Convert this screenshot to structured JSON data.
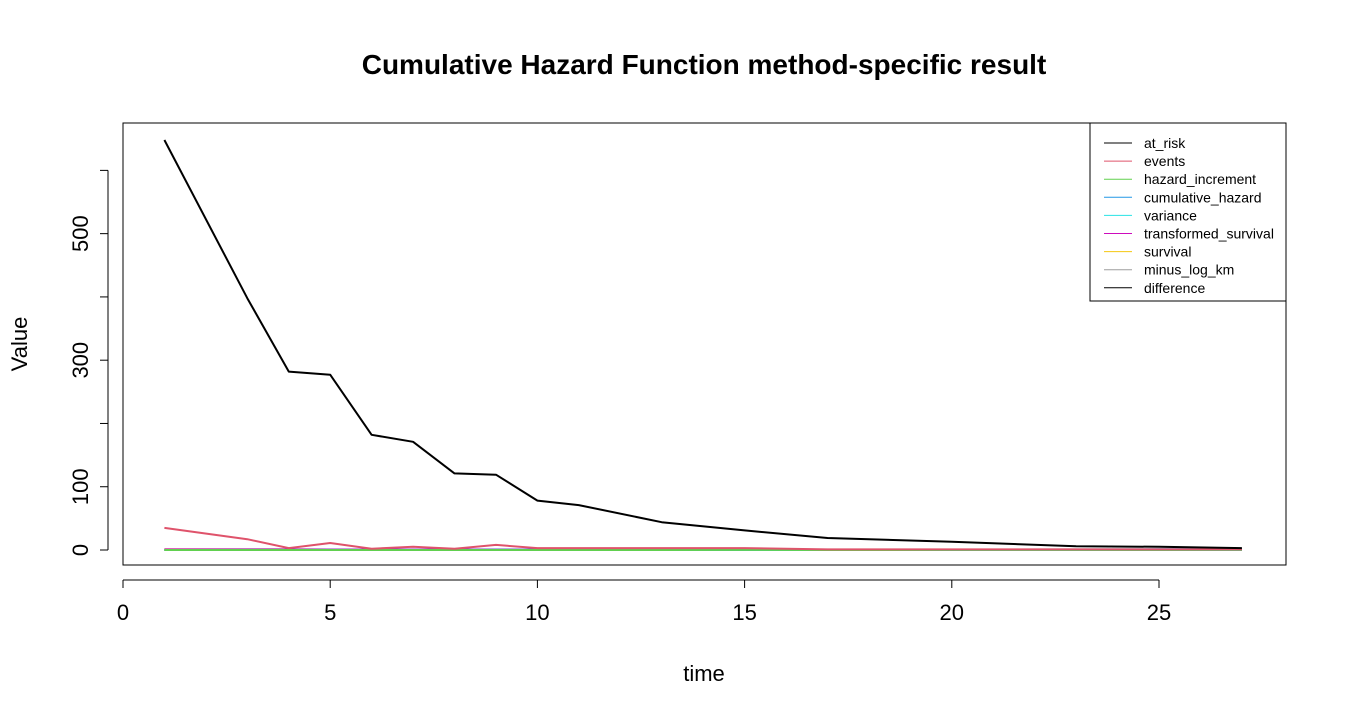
{
  "chart_data": {
    "type": "line",
    "title": "Cumulative Hazard Function method-specific result",
    "xlabel": "time",
    "ylabel": "Value",
    "xlim": [
      0,
      27
    ],
    "ylim": [
      0,
      650
    ],
    "xticks": [
      0,
      5,
      10,
      15,
      20,
      25
    ],
    "yticks": [
      0,
      100,
      300,
      500
    ],
    "yticks_unlabeled": [
      200,
      400,
      600
    ],
    "grid": false,
    "legend_position": "top-right",
    "x": [
      1,
      3,
      4,
      5,
      6,
      7,
      8,
      9,
      10,
      11,
      13,
      15,
      17,
      20,
      23,
      25,
      27
    ],
    "series": [
      {
        "name": "at_risk",
        "color": "#000000",
        "values": [
          648,
          398,
          282,
          277,
          182,
          171,
          121,
          119,
          78,
          71,
          44,
          31,
          19,
          13,
          6,
          5,
          3
        ]
      },
      {
        "name": "events",
        "color": "#DF536B",
        "values": [
          35,
          17,
          3,
          11,
          2,
          5,
          2,
          8,
          3,
          3,
          3,
          3,
          1,
          1,
          1,
          1,
          1
        ]
      },
      {
        "name": "hazard_increment",
        "color": "#61D04F",
        "values": [
          0.05,
          0.04,
          0.01,
          0.04,
          0.01,
          0.03,
          0.02,
          0.07,
          0.04,
          0.04,
          0.07,
          0.1,
          0.05,
          0.08,
          0.17,
          0.2,
          0.33
        ]
      },
      {
        "name": "cumulative_hazard",
        "color": "#2297E6",
        "values": [
          0.05,
          0.1,
          0.11,
          0.15,
          0.16,
          0.19,
          0.21,
          0.28,
          0.32,
          0.36,
          0.43,
          0.53,
          0.58,
          0.66,
          0.83,
          1.03,
          1.36
        ]
      },
      {
        "name": "variance",
        "color": "#28E2E5",
        "values": [
          0.0001,
          0.0002,
          0.0002,
          0.0003,
          0.0003,
          0.0004,
          0.0005,
          0.0011,
          0.0016,
          0.0022,
          0.0037,
          0.007,
          0.0098,
          0.016,
          0.044,
          0.084,
          0.195
        ]
      },
      {
        "name": "transformed_survival",
        "color": "#CD0BBC",
        "values": [
          0.95,
          0.9,
          0.9,
          0.86,
          0.85,
          0.83,
          0.81,
          0.76,
          0.73,
          0.7,
          0.65,
          0.59,
          0.56,
          0.52,
          0.44,
          0.36,
          0.26
        ]
      },
      {
        "name": "survival",
        "color": "#F5C710",
        "values": [
          0.95,
          0.9,
          0.89,
          0.86,
          0.85,
          0.82,
          0.81,
          0.75,
          0.72,
          0.69,
          0.64,
          0.58,
          0.55,
          0.5,
          0.42,
          0.34,
          0.23
        ]
      },
      {
        "name": "minus_log_km",
        "color": "#9E9E9E",
        "values": [
          0.05,
          0.1,
          0.11,
          0.15,
          0.16,
          0.19,
          0.21,
          0.29,
          0.33,
          0.37,
          0.45,
          0.55,
          0.6,
          0.69,
          0.88,
          1.09,
          1.49
        ]
      },
      {
        "name": "difference",
        "color": "#000000",
        "values": [
          0,
          0,
          0,
          0,
          0,
          0,
          0,
          0.01,
          0.01,
          0.01,
          0.02,
          0.02,
          0.02,
          0.03,
          0.05,
          0.06,
          0.13
        ]
      }
    ]
  }
}
